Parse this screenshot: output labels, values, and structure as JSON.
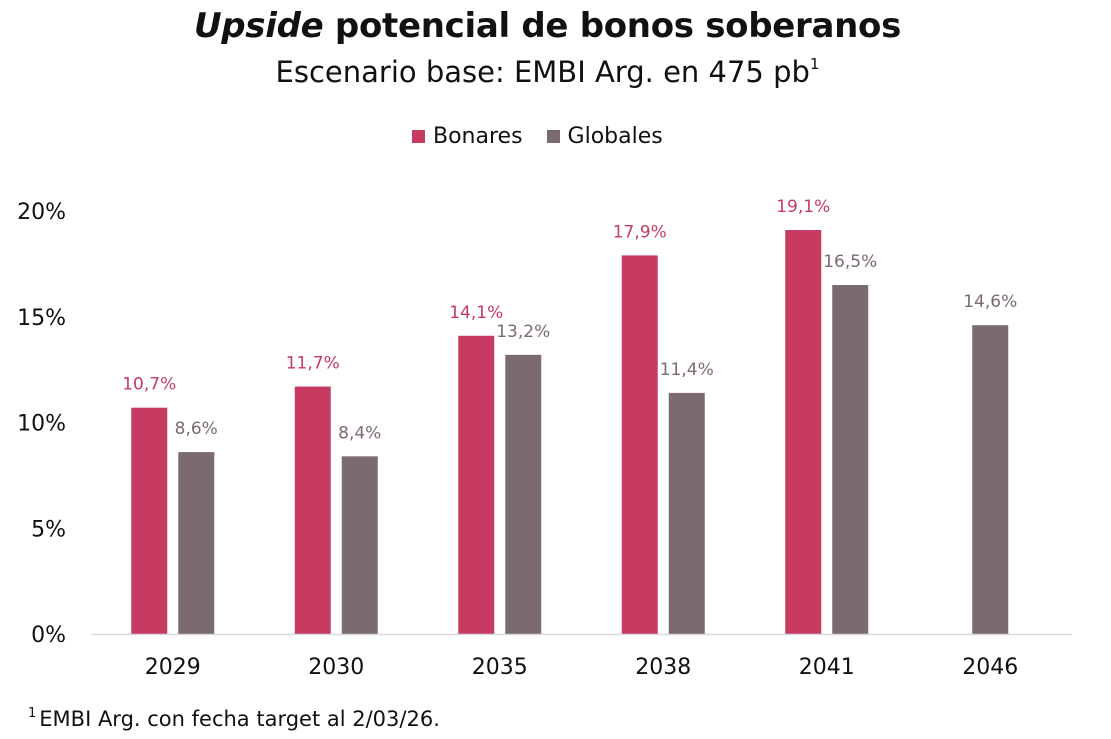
{
  "title": {
    "italic_part": "Upside",
    "rest": " potencial de bonos soberanos"
  },
  "subtitle": {
    "text": "Escenario base: EMBI Arg. en 475 pb",
    "superscript": "1"
  },
  "footnote": {
    "marker": "1",
    "text": "EMBI Arg. con fecha target al 2/03/26."
  },
  "colors": {
    "bonares": "#c73b62",
    "globales": "#7b6b6e",
    "axis_line": "#d9d9d9"
  },
  "chart_data": {
    "type": "bar",
    "categories": [
      "2029",
      "2030",
      "2035",
      "2038",
      "2041",
      "2046"
    ],
    "series": [
      {
        "name": "Bonares",
        "values": [
          10.7,
          11.7,
          14.1,
          17.9,
          19.1,
          null
        ],
        "labels": [
          "10,7%",
          "11,7%",
          "14,1%",
          "17,9%",
          "19,1%",
          null
        ]
      },
      {
        "name": "Globales",
        "values": [
          8.6,
          8.4,
          13.2,
          11.4,
          16.5,
          14.6
        ],
        "labels": [
          "8,6%",
          "8,4%",
          "13,2%",
          "11,4%",
          "16,5%",
          "14,6%"
        ]
      }
    ],
    "ylim": [
      0,
      20
    ],
    "yticks": [
      0,
      5,
      10,
      15,
      20
    ],
    "ytick_labels": [
      "0%",
      "5%",
      "10%",
      "15%",
      "20%"
    ],
    "legend_position": "top-center",
    "grid": false,
    "xlabel": "",
    "ylabel": ""
  }
}
